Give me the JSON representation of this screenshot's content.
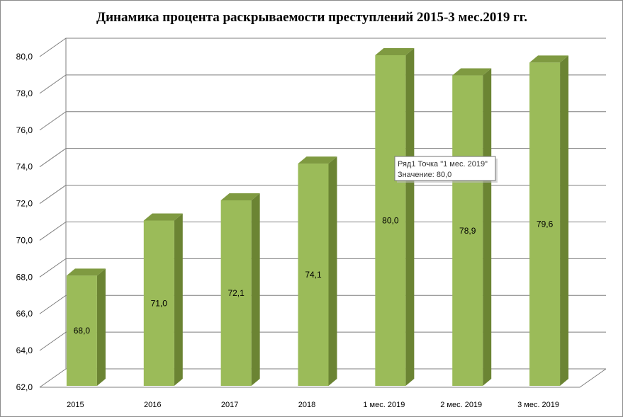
{
  "chart_data": {
    "type": "bar",
    "style": "3d-column",
    "title": "Динамика процента раскрываемости преступлений 2015-3 мес.2019 гг.",
    "categories": [
      "2015",
      "2016",
      "2017",
      "2018",
      "1 мес. 2019",
      "2 мес. 2019",
      "3 мес. 2019"
    ],
    "series": [
      {
        "values": [
          68.0,
          71.0,
          72.1,
          74.1,
          80.0,
          78.9,
          79.6
        ],
        "data_labels": [
          "68,0",
          "71,0",
          "72,1",
          "74,1",
          "80,0",
          "78,9",
          "79,6"
        ],
        "color": "#9bbb59"
      }
    ],
    "ylim": [
      62,
      80
    ],
    "yticks": [
      "62,0",
      "64,0",
      "66,0",
      "68,0",
      "70,0",
      "72,0",
      "74,0",
      "76,0",
      "78,0",
      "80,0"
    ],
    "grid": true,
    "legend": "none",
    "tooltip": {
      "line1": "Ряд1 Точка \"1 мес. 2019\"",
      "line2": "Значение: 80,0"
    }
  },
  "colors": {
    "bar_front": "#9bbb59",
    "bar_side": "#6b8433",
    "bar_top": "#7f9a41",
    "grid": "#7f7f7f"
  }
}
